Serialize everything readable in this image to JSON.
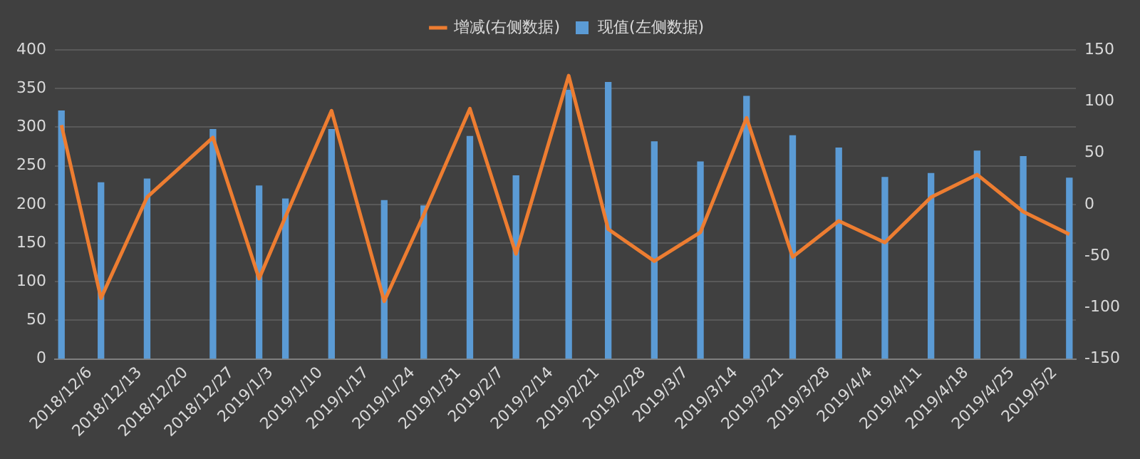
{
  "chart_data": {
    "type": "bar",
    "x": [
      "2018-12-06",
      "2018-12-12",
      "2018-12-19",
      "2018-12-29",
      "2019-01-05",
      "2019-01-09",
      "2019-01-16",
      "2019-01-24",
      "2019-01-30",
      "2019-02-06",
      "2019-02-13",
      "2019-02-21",
      "2019-02-27",
      "2019-03-06",
      "2019-03-13",
      "2019-03-20",
      "2019-03-27",
      "2019-04-03",
      "2019-04-10",
      "2019-04-17",
      "2019-04-24",
      "2019-05-01",
      "2019-05-08"
    ],
    "series": [
      {
        "name": "现值(左侧数据)",
        "color": "#5b9bd5",
        "values": [
          321,
          228,
          233,
          297,
          224,
          207,
          297,
          205,
          198,
          288,
          237,
          348,
          358,
          281,
          255,
          340,
          289,
          273,
          235,
          240,
          269,
          262,
          234
        ]
      },
      {
        "name": "增减(右侧数据)",
        "type": "line",
        "axis": "y2",
        "color": "#ed7d31",
        "values": [
          77,
          -91,
          7,
          65,
          -72,
          -12,
          91,
          -94,
          -10,
          93,
          -48,
          125,
          -24,
          -55,
          -27,
          84,
          -51,
          -16,
          -37,
          7,
          29,
          -7,
          -29
        ]
      }
    ],
    "xlim": [
      "2018-12-05",
      "2019-05-09"
    ],
    "xticks": [
      {
        "value": "2018-12-06",
        "label": "2018/12/6"
      },
      {
        "value": "2018-12-13",
        "label": "2018/12/13"
      },
      {
        "value": "2018-12-20",
        "label": "2018/12/20"
      },
      {
        "value": "2018-12-27",
        "label": "2018/12/27"
      },
      {
        "value": "2019-01-03",
        "label": "2019/1/3"
      },
      {
        "value": "2019-01-10",
        "label": "2019/1/10"
      },
      {
        "value": "2019-01-17",
        "label": "2019/1/17"
      },
      {
        "value": "2019-01-24",
        "label": "2019/1/24"
      },
      {
        "value": "2019-01-31",
        "label": "2019/1/31"
      },
      {
        "value": "2019-02-07",
        "label": "2019/2/7"
      },
      {
        "value": "2019-02-14",
        "label": "2019/2/14"
      },
      {
        "value": "2019-02-21",
        "label": "2019/2/21"
      },
      {
        "value": "2019-02-28",
        "label": "2019/2/28"
      },
      {
        "value": "2019-03-07",
        "label": "2019/3/7"
      },
      {
        "value": "2019-03-14",
        "label": "2019/3/14"
      },
      {
        "value": "2019-03-21",
        "label": "2019/3/21"
      },
      {
        "value": "2019-03-28",
        "label": "2019/3/28"
      },
      {
        "value": "2019-04-04",
        "label": "2019/4/4"
      },
      {
        "value": "2019-04-11",
        "label": "2019/4/11"
      },
      {
        "value": "2019-04-18",
        "label": "2019/4/18"
      },
      {
        "value": "2019-04-25",
        "label": "2019/4/25"
      },
      {
        "value": "2019-05-02",
        "label": "2019/5/2"
      }
    ],
    "ylim": [
      0,
      400
    ],
    "yticks": [
      0,
      50,
      100,
      150,
      200,
      250,
      300,
      350,
      400
    ],
    "y2lim": [
      -150,
      150
    ],
    "y2ticks": [
      -150,
      -100,
      -50,
      0,
      50,
      100,
      150
    ],
    "grid": "y",
    "legend": "top",
    "marker": "none",
    "line_style": "solid"
  }
}
